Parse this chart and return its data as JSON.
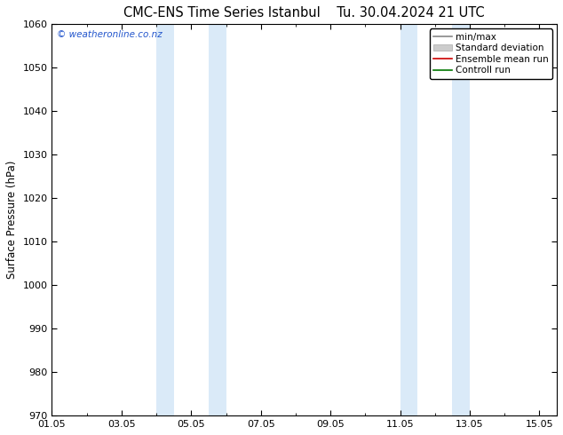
{
  "title_left": "CMC-ENS Time Series Istanbul",
  "title_right": "Tu. 30.04.2024 21 UTC",
  "ylabel": "Surface Pressure (hPa)",
  "ylim": [
    970,
    1060
  ],
  "yticks": [
    970,
    980,
    990,
    1000,
    1010,
    1020,
    1030,
    1040,
    1050,
    1060
  ],
  "xlim": [
    0,
    14.5
  ],
  "xtick_labels": [
    "01.05",
    "03.05",
    "05.05",
    "07.05",
    "09.05",
    "11.05",
    "13.05",
    "15.05"
  ],
  "xtick_positions": [
    0,
    2,
    4,
    6,
    8,
    10,
    12,
    14
  ],
  "shaded_regions": [
    {
      "xmin": 3.0,
      "xmax": 3.5,
      "color": "#daeaf8"
    },
    {
      "xmin": 4.5,
      "xmax": 5.0,
      "color": "#daeaf8"
    },
    {
      "xmin": 10.0,
      "xmax": 10.5,
      "color": "#daeaf8"
    },
    {
      "xmin": 11.5,
      "xmax": 12.0,
      "color": "#daeaf8"
    }
  ],
  "watermark": "© weatheronline.co.nz",
  "legend_items": [
    {
      "label": "min/max",
      "color": "#888888",
      "lw": 1.2,
      "type": "line"
    },
    {
      "label": "Standard deviation",
      "color": "#cccccc",
      "lw": 6,
      "type": "patch"
    },
    {
      "label": "Ensemble mean run",
      "color": "#cc0000",
      "lw": 1.2,
      "type": "line"
    },
    {
      "label": "Controll run",
      "color": "#007700",
      "lw": 1.2,
      "type": "line"
    }
  ],
  "background_color": "#ffffff",
  "plot_bg_color": "#ffffff",
  "title_fontsize": 10.5,
  "axis_label_fontsize": 8.5,
  "tick_fontsize": 8,
  "legend_fontsize": 7.5
}
